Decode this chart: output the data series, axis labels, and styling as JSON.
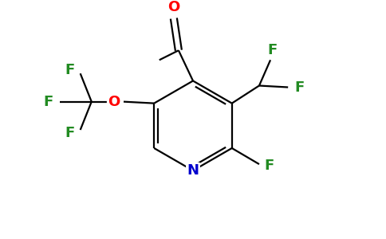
{
  "background_color": "#ffffff",
  "bond_color": "#000000",
  "atom_colors": {
    "N": "#0000cd",
    "O_aldehyde": "#ff0000",
    "O_ether": "#ff0000",
    "F": "#228B22",
    "C": "#000000"
  },
  "figsize": [
    4.84,
    3.0
  ],
  "dpi": 100
}
